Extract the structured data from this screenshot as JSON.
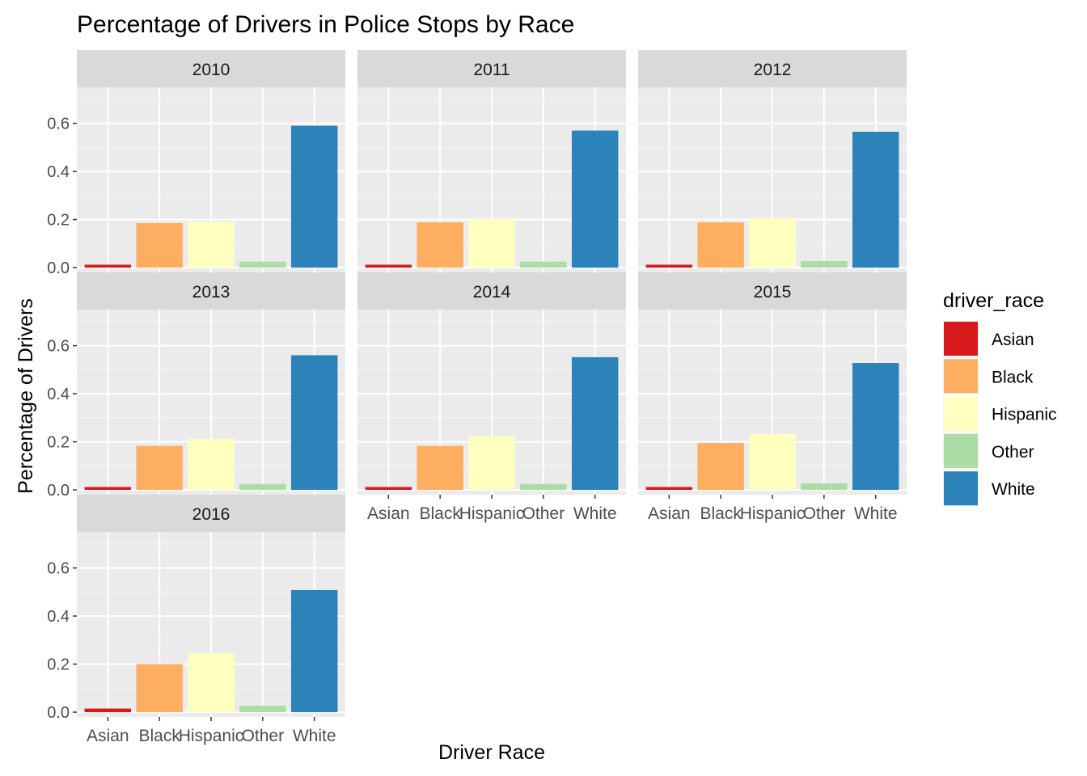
{
  "chart_data": {
    "type": "bar",
    "title": "Percentage of Drivers in Police Stops by Race",
    "xlabel": "Driver Race",
    "ylabel": "Percentage of Drivers",
    "ylim": [
      0,
      0.6
    ],
    "yticks": [
      "0.0",
      "0.2",
      "0.4",
      "0.6"
    ],
    "categories": [
      "Asian",
      "Black",
      "Hispanic",
      "Other",
      "White"
    ],
    "grid": true,
    "legend": {
      "title": "driver_race",
      "position": "right",
      "items": [
        {
          "name": "Asian",
          "color": "#D7191C"
        },
        {
          "name": "Black",
          "color": "#FDAE61"
        },
        {
          "name": "Hispanic",
          "color": "#FFFFBF"
        },
        {
          "name": "Other",
          "color": "#ABDDA4"
        },
        {
          "name": "White",
          "color": "#2B83BA"
        }
      ]
    },
    "facets": [
      {
        "label": "2010",
        "values": [
          0.012,
          0.185,
          0.19,
          0.025,
          0.59
        ]
      },
      {
        "label": "2011",
        "values": [
          0.012,
          0.188,
          0.2,
          0.025,
          0.57
        ]
      },
      {
        "label": "2012",
        "values": [
          0.012,
          0.188,
          0.205,
          0.027,
          0.565
        ]
      },
      {
        "label": "2013",
        "values": [
          0.012,
          0.183,
          0.213,
          0.025,
          0.56
        ]
      },
      {
        "label": "2014",
        "values": [
          0.012,
          0.183,
          0.222,
          0.025,
          0.552
        ]
      },
      {
        "label": "2015",
        "values": [
          0.012,
          0.195,
          0.232,
          0.027,
          0.528
        ]
      },
      {
        "label": "2016",
        "values": [
          0.015,
          0.2,
          0.245,
          0.027,
          0.508
        ]
      }
    ]
  }
}
